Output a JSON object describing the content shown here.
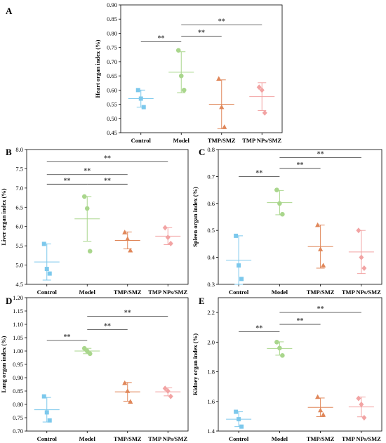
{
  "colors": {
    "Control": "#7cc8ec",
    "Model": "#a9d68c",
    "TMP/SMZ": "#e0875a",
    "TMP NPs/SMZ": "#f2a3a3",
    "bracket": "#555555"
  },
  "chart_data": [
    {
      "panel": "A",
      "type": "scatter",
      "ylabel": "Heart organ index (%)",
      "categories": [
        "Control",
        "Model",
        "TMP/SMZ",
        "TMP NPs/SMZ"
      ],
      "ylim": [
        0.45,
        0.9
      ],
      "yticks": [
        "0.45",
        "0.50",
        "0.55",
        "0.60",
        "0.65",
        "0.70",
        "0.75",
        "0.80",
        "0.85",
        "0.90"
      ],
      "points": [
        [
          0.6,
          0.57,
          0.54
        ],
        [
          0.74,
          0.65,
          0.6
        ],
        [
          0.64,
          0.54,
          0.47
        ],
        [
          0.61,
          0.6,
          0.52
        ]
      ],
      "means": [
        0.57,
        0.663,
        0.55,
        0.577
      ],
      "sd": [
        0.03,
        0.072,
        0.086,
        0.049
      ],
      "significance": [
        {
          "from": 0,
          "to": 1,
          "y": 0.77,
          "label": "**"
        },
        {
          "from": 1,
          "to": 2,
          "y": 0.79,
          "label": "**"
        },
        {
          "from": 1,
          "to": 3,
          "y": 0.83,
          "label": "**"
        }
      ]
    },
    {
      "panel": "B",
      "type": "scatter",
      "ylabel": "Liver organ index (%)",
      "categories": [
        "Control",
        "Model",
        "TMP/SMZ",
        "TMP NPs/SMZ"
      ],
      "ylim": [
        4.5,
        8.0
      ],
      "yticks": [
        "4.5",
        "5.0",
        "5.5",
        "6.0",
        "6.5",
        "7.0",
        "7.5",
        "8.0"
      ],
      "points": [
        [
          5.55,
          4.9,
          4.78
        ],
        [
          6.78,
          6.47,
          5.36
        ],
        [
          5.85,
          5.68,
          5.38
        ],
        [
          5.97,
          5.72,
          5.56
        ]
      ],
      "means": [
        5.08,
        6.2,
        5.64,
        5.75
      ],
      "sd": [
        0.47,
        0.58,
        0.22,
        0.22
      ],
      "significance": [
        {
          "from": 0,
          "to": 1,
          "y": 7.1,
          "label": "**"
        },
        {
          "from": 1,
          "to": 2,
          "y": 7.1,
          "label": "**"
        },
        {
          "from": 0,
          "to": 2,
          "y": 7.35,
          "label": "**"
        },
        {
          "from": 0,
          "to": 3,
          "y": 7.68,
          "label": "**"
        }
      ]
    },
    {
      "panel": "C",
      "type": "scatter",
      "ylabel": "Spleen organ index (%)",
      "categories": [
        "Control",
        "Model",
        "TMP/SMZ",
        "TMP NPs/SMZ"
      ],
      "ylim": [
        0.3,
        0.8
      ],
      "yticks": [
        "0.3",
        "0.4",
        "0.5",
        "0.6",
        "0.7",
        "0.8"
      ],
      "points": [
        [
          0.48,
          0.37,
          0.32
        ],
        [
          0.65,
          0.6,
          0.56
        ],
        [
          0.52,
          0.43,
          0.37
        ],
        [
          0.5,
          0.4,
          0.36
        ]
      ],
      "means": [
        0.39,
        0.603,
        0.44,
        0.42
      ],
      "sd": [
        0.09,
        0.045,
        0.08,
        0.08
      ],
      "significance": [
        {
          "from": 0,
          "to": 1,
          "y": 0.7,
          "label": "**"
        },
        {
          "from": 1,
          "to": 2,
          "y": 0.73,
          "label": "**"
        },
        {
          "from": 1,
          "to": 3,
          "y": 0.77,
          "label": "**"
        }
      ]
    },
    {
      "panel": "D",
      "type": "scatter",
      "ylabel": "Lung organ index (%)",
      "categories": [
        "Control",
        "Model",
        "TMP/SMZ",
        "TMP NPs/SMZ"
      ],
      "ylim": [
        0.7,
        1.2
      ],
      "yticks": [
        "0.70",
        "0.75",
        "0.80",
        "0.85",
        "0.90",
        "0.95",
        "1.00",
        "1.05",
        "1.10",
        "1.15",
        "1.20"
      ],
      "points": [
        [
          0.83,
          0.77,
          0.74
        ],
        [
          1.01,
          1.0,
          0.99
        ],
        [
          0.88,
          0.85,
          0.81
        ],
        [
          0.86,
          0.85,
          0.83
        ]
      ],
      "means": [
        0.78,
        1.0,
        0.847,
        0.847
      ],
      "sd": [
        0.046,
        0.01,
        0.035,
        0.015
      ],
      "significance": [
        {
          "from": 0,
          "to": 1,
          "y": 1.04,
          "label": "**"
        },
        {
          "from": 1,
          "to": 2,
          "y": 1.08,
          "label": "**"
        },
        {
          "from": 1,
          "to": 3,
          "y": 1.13,
          "label": "**"
        }
      ]
    },
    {
      "panel": "E",
      "type": "scatter",
      "ylabel": "Kidney organ index (%)",
      "categories": [
        "Control",
        "Model",
        "TMP/SMZ",
        "TMP NPs/SMZ"
      ],
      "ylim": [
        1.4,
        2.3
      ],
      "yticks": [
        "1.4",
        "1.6",
        "1.8",
        "2.0",
        "2.2"
      ],
      "points": [
        [
          1.53,
          1.48,
          1.43
        ],
        [
          2.0,
          1.96,
          1.91
        ],
        [
          1.63,
          1.54,
          1.51
        ],
        [
          1.62,
          1.58,
          1.49
        ]
      ],
      "means": [
        1.48,
        1.957,
        1.56,
        1.563
      ],
      "sd": [
        0.05,
        0.045,
        0.063,
        0.067
      ],
      "significance": [
        {
          "from": 0,
          "to": 1,
          "y": 2.07,
          "label": "**"
        },
        {
          "from": 1,
          "to": 2,
          "y": 2.12,
          "label": "**"
        },
        {
          "from": 1,
          "to": 3,
          "y": 2.2,
          "label": "**"
        }
      ]
    }
  ]
}
